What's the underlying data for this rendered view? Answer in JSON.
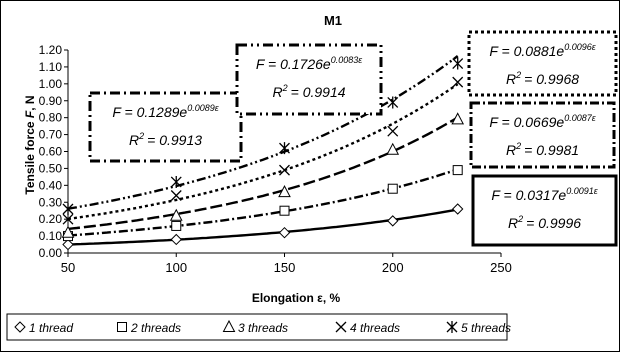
{
  "chart_data": {
    "type": "scatter",
    "title": "M1",
    "xlabel": "Elongation ε, %",
    "ylabel_parts": [
      "Tensile force ",
      "F",
      ", N"
    ],
    "xlim": [
      50,
      250
    ],
    "ylim": [
      0.0,
      1.2
    ],
    "x_ticks": [
      "50",
      "100",
      "150",
      "200",
      "250"
    ],
    "y_ticks": [
      "0.00",
      "0.10",
      "0.20",
      "0.30",
      "0.40",
      "0.50",
      "0.60",
      "0.70",
      "0.80",
      "0.90",
      "1.00",
      "1.10",
      "1.20"
    ],
    "grid": false,
    "legend_position": "bottom",
    "series": [
      {
        "name": "1 thread",
        "marker": "diamond",
        "line": "solid",
        "x": [
          50,
          100,
          150,
          200,
          230
        ],
        "y": [
          0.05,
          0.08,
          0.12,
          0.19,
          0.26
        ],
        "fit": {
          "a": 0.0317,
          "b": 0.0091
        }
      },
      {
        "name": "2 threads",
        "marker": "square",
        "line": "dash-dot",
        "x": [
          50,
          100,
          150,
          200,
          230
        ],
        "y": [
          0.1,
          0.16,
          0.25,
          0.38,
          0.49
        ],
        "fit": {
          "a": 0.0669,
          "b": 0.0087
        }
      },
      {
        "name": "3 threads",
        "marker": "triangle",
        "line": "dotted",
        "x": [
          50,
          100,
          150,
          200,
          230
        ],
        "y": [
          0.12,
          0.22,
          0.36,
          0.61,
          0.79
        ],
        "fit": {
          "a": 0.1289,
          "b": 0.0089
        }
      },
      {
        "name": "4 threads",
        "marker": "x",
        "line": "dash-dot-dot",
        "x": [
          50,
          100,
          150,
          200,
          230
        ],
        "y": [
          0.2,
          0.34,
          0.49,
          0.72,
          1.01
        ],
        "fit": {
          "a": 0.1726,
          "b": 0.0083
        }
      },
      {
        "name": "5 threads",
        "marker": "star",
        "line": "long-dash",
        "x": [
          50,
          100,
          150,
          200,
          230
        ],
        "y": [
          0.26,
          0.42,
          0.62,
          0.89,
          1.12
        ],
        "fit": {
          "a": 0.0881,
          "b": 0.0096
        }
      }
    ],
    "annotations": [
      {
        "id": "box-3",
        "f_prefix": "F = 0.1289e",
        "f_exp": "0.0089ε",
        "r2": "= 0.9913"
      },
      {
        "id": "box-4",
        "f_prefix": "F = 0.1726e",
        "f_exp": "0.0083ε",
        "r2": "= 0.9914"
      },
      {
        "id": "box-5",
        "f_prefix": "F = 0.0881e",
        "f_exp": "0.0096ε",
        "r2": "= 0.9968"
      },
      {
        "id": "box-2",
        "f_prefix": "F = 0.0669e",
        "f_exp": "0.0087ε",
        "r2": "= 0.9981"
      },
      {
        "id": "box-1",
        "f_prefix": "F = 0.0317e",
        "f_exp": "0.0091ε",
        "r2": "= 0.9996"
      }
    ],
    "r2_symbol": "R",
    "r2_sup": "2"
  }
}
